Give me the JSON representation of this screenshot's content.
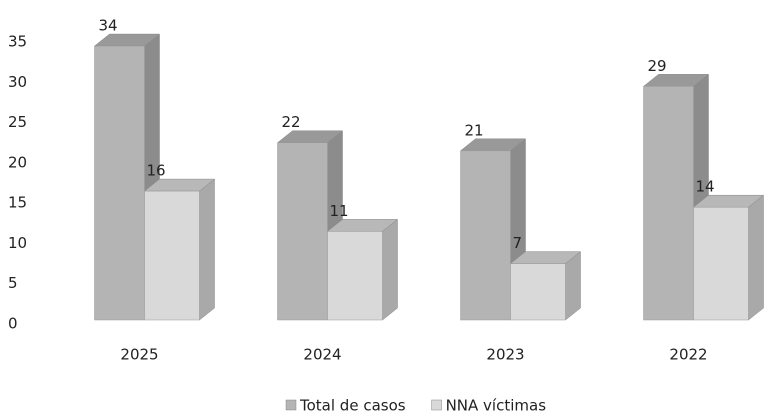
{
  "chart_data": {
    "type": "bar3d",
    "categories": [
      "2025",
      "2024",
      "2023",
      "2022"
    ],
    "series": [
      {
        "name": "Total de casos",
        "color": "#b4b4b4",
        "values": [
          34,
          22,
          21,
          29
        ]
      },
      {
        "name": "NNA víctimas",
        "color": "#d9d9d9",
        "values": [
          16,
          11,
          7,
          14
        ]
      }
    ],
    "ylim": [
      0,
      35
    ],
    "yticks": [
      0,
      5,
      10,
      15,
      20,
      25,
      30,
      35
    ],
    "legend": "bottom"
  }
}
